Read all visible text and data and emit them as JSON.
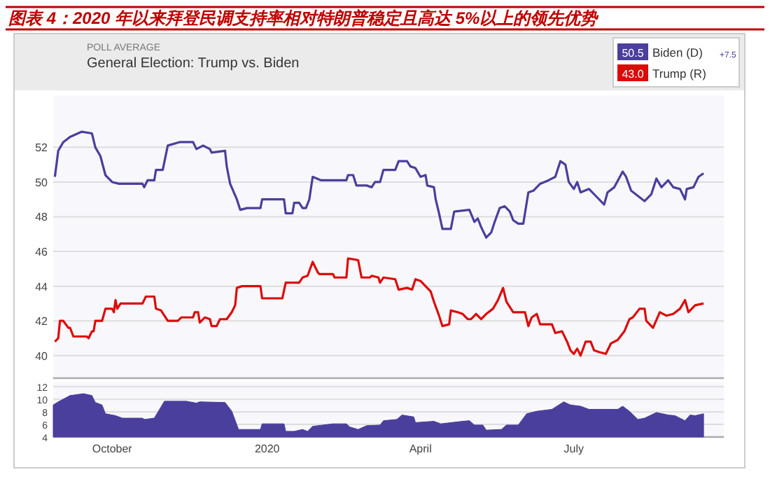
{
  "chart_data": [
    {
      "type": "line",
      "title": "图表 4：2020 年以来拜登民调支持率相对特朗普稳定且高达 5%以上的领先优势",
      "subtitle": "General Election: Trump vs. Biden",
      "annotations": [
        "POLL AVERAGE",
        "50.5",
        "43.0",
        "+7.5"
      ],
      "xlim": [
        "2019-08-27",
        "2020-09-28"
      ],
      "ylim": [
        38.7,
        55
      ],
      "yticks": [
        40,
        42,
        44,
        46,
        48,
        50,
        52
      ],
      "grid": "y",
      "legend": "top right",
      "tick_labels": "y",
      "line_style": "solid",
      "series": [
        {
          "name": "Biden (D)",
          "color": "#4a3f9d",
          "x": [
            "2019-08-28",
            "2019-08-30",
            "2019-09-02",
            "2019-09-06",
            "2019-09-13",
            "2019-09-19",
            "2019-09-21",
            "2019-09-24",
            "2019-09-27",
            "2019-10-01",
            "2019-10-05",
            "2019-10-19",
            "2019-10-20",
            "2019-10-22",
            "2019-10-26",
            "2019-10-27",
            "2019-10-31",
            "2019-11-03",
            "2019-11-10",
            "2019-11-18",
            "2019-11-20",
            "2019-11-24",
            "2019-11-28",
            "2019-11-29",
            "2019-12-07",
            "2019-12-08",
            "2019-12-10",
            "2019-12-14",
            "2019-12-16",
            "2019-12-20",
            "2019-12-28",
            "2019-12-29",
            "2020-01-11",
            "2020-01-12",
            "2020-01-16",
            "2020-01-17",
            "2020-01-20",
            "2020-01-22",
            "2020-01-24",
            "2020-01-26",
            "2020-01-28",
            "2020-02-02",
            "2020-02-17",
            "2020-02-18",
            "2020-02-21",
            "2020-02-23",
            "2020-02-29",
            "2020-03-03",
            "2020-03-05",
            "2020-03-08",
            "2020-03-10",
            "2020-03-17",
            "2020-03-19",
            "2020-03-24",
            "2020-03-26",
            "2020-03-29",
            "2020-04-01",
            "2020-04-04",
            "2020-04-05",
            "2020-04-09",
            "2020-04-10",
            "2020-04-12",
            "2020-04-14",
            "2020-04-19",
            "2020-04-21",
            "2020-04-30",
            "2020-05-03",
            "2020-05-05",
            "2020-05-07",
            "2020-05-10",
            "2020-05-13",
            "2020-05-15",
            "2020-05-18",
            "2020-05-21",
            "2020-05-24",
            "2020-05-26",
            "2020-05-29",
            "2020-06-01",
            "2020-06-04",
            "2020-06-07",
            "2020-06-11",
            "2020-06-16",
            "2020-06-20",
            "2020-06-23",
            "2020-06-26",
            "2020-06-28",
            "2020-07-01",
            "2020-07-03",
            "2020-07-05",
            "2020-07-10",
            "2020-07-14",
            "2020-07-19",
            "2020-07-21",
            "2020-07-25",
            "2020-07-30",
            "2020-08-01",
            "2020-08-04",
            "2020-08-08",
            "2020-08-12",
            "2020-08-16",
            "2020-08-19",
            "2020-08-22",
            "2020-08-26",
            "2020-08-29",
            "2020-09-02",
            "2020-09-05",
            "2020-09-06",
            "2020-09-10",
            "2020-09-13",
            "2020-09-16"
          ],
          "values": [
            50.3,
            51.8,
            52.3,
            52.6,
            52.9,
            52.8,
            52.0,
            51.5,
            50.4,
            50.0,
            49.9,
            49.9,
            49.7,
            50.1,
            50.1,
            50.7,
            50.7,
            52.1,
            52.3,
            52.3,
            51.9,
            52.1,
            51.9,
            51.7,
            51.8,
            50.9,
            49.9,
            49.0,
            48.4,
            48.5,
            48.5,
            49.0,
            49.0,
            48.2,
            48.2,
            48.8,
            48.8,
            48.5,
            48.5,
            49.0,
            50.3,
            50.1,
            50.1,
            50.4,
            50.4,
            49.8,
            49.8,
            49.7,
            50.0,
            50.0,
            50.7,
            50.7,
            51.2,
            51.2,
            50.9,
            50.8,
            50.3,
            50.4,
            49.8,
            49.7,
            49.0,
            48.2,
            47.3,
            47.3,
            48.3,
            48.4,
            47.7,
            47.9,
            47.4,
            46.8,
            47.1,
            47.7,
            48.5,
            48.6,
            48.3,
            47.8,
            47.6,
            47.6,
            49.4,
            49.5,
            49.9,
            50.1,
            50.3,
            51.2,
            51.0,
            50.0,
            49.6,
            50.0,
            49.4,
            49.6,
            49.2,
            48.7,
            49.4,
            49.7,
            50.6,
            50.3,
            49.5,
            49.2,
            48.9,
            49.3,
            50.2,
            49.7,
            50.1,
            49.7,
            49.6,
            49.0,
            49.6,
            49.7,
            50.3,
            50.5
          ]
        },
        {
          "name": "Trump (R)",
          "color": "#dd0a0a",
          "x": [
            "2019-08-28",
            "2019-08-30",
            "2019-08-31",
            "2019-09-02",
            "2019-09-05",
            "2019-09-06",
            "2019-09-08",
            "2019-09-16",
            "2019-09-17",
            "2019-09-19",
            "2019-09-20",
            "2019-09-21",
            "2019-09-25",
            "2019-09-27",
            "2019-10-01",
            "2019-10-02",
            "2019-10-03",
            "2019-10-04",
            "2019-10-06",
            "2019-10-19",
            "2019-10-21",
            "2019-10-26",
            "2019-10-27",
            "2019-10-30",
            "2019-11-03",
            "2019-11-09",
            "2019-11-11",
            "2019-11-18",
            "2019-11-19",
            "2019-11-21",
            "2019-11-22",
            "2019-11-25",
            "2019-11-28",
            "2019-11-29",
            "2019-12-02",
            "2019-12-04",
            "2019-12-08",
            "2019-12-11",
            "2019-12-13",
            "2019-12-14",
            "2019-12-17",
            "2019-12-28",
            "2019-12-29",
            "2020-01-10",
            "2020-01-12",
            "2020-01-20",
            "2020-01-22",
            "2020-01-25",
            "2020-01-28",
            "2020-01-31",
            "2020-02-01",
            "2020-02-09",
            "2020-02-10",
            "2020-02-17",
            "2020-02-18",
            "2020-02-24",
            "2020-02-26",
            "2020-03-02",
            "2020-03-03",
            "2020-03-07",
            "2020-03-08",
            "2020-03-10",
            "2020-03-17",
            "2020-03-19",
            "2020-03-24",
            "2020-03-27",
            "2020-03-29",
            "2020-04-01",
            "2020-04-04",
            "2020-04-07",
            "2020-04-09",
            "2020-04-12",
            "2020-04-14",
            "2020-04-18",
            "2020-04-19",
            "2020-04-23",
            "2020-04-26",
            "2020-04-29",
            "2020-05-01",
            "2020-05-04",
            "2020-05-07",
            "2020-05-10",
            "2020-05-14",
            "2020-05-17",
            "2020-05-20",
            "2020-05-22",
            "2020-05-26",
            "2020-06-02",
            "2020-06-04",
            "2020-06-06",
            "2020-06-09",
            "2020-06-11",
            "2020-06-18",
            "2020-06-20",
            "2020-06-24",
            "2020-06-27",
            "2020-06-29",
            "2020-07-01",
            "2020-07-03",
            "2020-07-05",
            "2020-07-08",
            "2020-07-11",
            "2020-07-13",
            "2020-07-16",
            "2020-07-20",
            "2020-07-23",
            "2020-07-27",
            "2020-07-31",
            "2020-08-03",
            "2020-08-05",
            "2020-08-09",
            "2020-08-12",
            "2020-08-13",
            "2020-08-17",
            "2020-08-21",
            "2020-08-25",
            "2020-08-29",
            "2020-09-02",
            "2020-09-05",
            "2020-09-07",
            "2020-09-11",
            "2020-09-16"
          ],
          "values": [
            40.8,
            41.0,
            42.0,
            42.0,
            41.6,
            41.6,
            41.1,
            41.1,
            41.0,
            41.4,
            41.4,
            42.0,
            42.0,
            42.7,
            42.7,
            42.5,
            43.2,
            42.7,
            43.0,
            43.0,
            43.4,
            43.4,
            42.7,
            42.6,
            42.0,
            42.0,
            42.2,
            42.2,
            42.5,
            42.5,
            41.9,
            42.2,
            42.1,
            41.7,
            41.7,
            42.1,
            42.1,
            42.5,
            42.9,
            43.9,
            44.0,
            44.0,
            43.3,
            43.3,
            44.2,
            44.2,
            44.5,
            44.6,
            45.4,
            44.8,
            44.7,
            44.7,
            44.5,
            44.5,
            45.6,
            45.5,
            44.5,
            44.5,
            44.6,
            44.5,
            44.2,
            44.5,
            44.4,
            43.8,
            43.9,
            43.8,
            44.4,
            44.3,
            44.0,
            43.7,
            43.1,
            42.3,
            41.7,
            41.8,
            42.6,
            42.5,
            42.4,
            42.1,
            42.1,
            42.4,
            42.1,
            42.4,
            42.7,
            43.2,
            43.9,
            43.1,
            42.5,
            42.5,
            41.7,
            42.2,
            42.4,
            41.8,
            41.8,
            41.3,
            41.4,
            40.8,
            40.3,
            40.1,
            40.4,
            40.0,
            40.8,
            40.8,
            40.3,
            40.2,
            40.1,
            40.7,
            40.9,
            41.4,
            42.1,
            42.2,
            42.7,
            42.7,
            42.0,
            41.6,
            42.5,
            42.3,
            42.4,
            42.7,
            43.2,
            42.5,
            42.9,
            43.0
          ]
        }
      ]
    },
    {
      "type": "area",
      "xlim": [
        "2019-08-27",
        "2020-09-28"
      ],
      "xticks": [
        {
          "value": "2019-10-01",
          "label": "October"
        },
        {
          "value": "2020-01-01",
          "label": "2020"
        },
        {
          "value": "2020-04-01",
          "label": "April"
        },
        {
          "value": "2020-07-01",
          "label": "July"
        }
      ],
      "ylim": [
        4,
        12.7
      ],
      "yticks": [
        4,
        6,
        8,
        10,
        12
      ],
      "grid": "y",
      "color": "#4a3f9d",
      "x": [
        "2019-08-27",
        "2019-08-30",
        "2019-09-06",
        "2019-09-14",
        "2019-09-19",
        "2019-09-21",
        "2019-09-25",
        "2019-09-27",
        "2019-10-03",
        "2019-10-07",
        "2019-10-19",
        "2019-10-20",
        "2019-10-26",
        "2019-10-30",
        "2019-11-01",
        "2019-11-14",
        "2019-11-20",
        "2019-11-22",
        "2019-12-07",
        "2019-12-11",
        "2019-12-15",
        "2019-12-28",
        "2019-12-29",
        "2020-01-11",
        "2020-01-12",
        "2020-01-17",
        "2020-01-22",
        "2020-01-25",
        "2020-01-28",
        "2020-02-09",
        "2020-02-17",
        "2020-02-19",
        "2020-02-24",
        "2020-02-29",
        "2020-03-08",
        "2020-03-10",
        "2020-03-18",
        "2020-03-21",
        "2020-03-28",
        "2020-03-29",
        "2020-04-09",
        "2020-04-13",
        "2020-04-26",
        "2020-04-30",
        "2020-05-03",
        "2020-05-08",
        "2020-05-10",
        "2020-05-19",
        "2020-05-22",
        "2020-05-29",
        "2020-06-03",
        "2020-06-09",
        "2020-06-18",
        "2020-06-25",
        "2020-06-29",
        "2020-07-05",
        "2020-07-10",
        "2020-07-27",
        "2020-07-30",
        "2020-08-03",
        "2020-08-08",
        "2020-08-12",
        "2020-08-19",
        "2020-08-26",
        "2020-08-30",
        "2020-09-05",
        "2020-09-08",
        "2020-09-11",
        "2020-09-16"
      ],
      "values": [
        9.1,
        9.6,
        10.6,
        10.9,
        10.6,
        9.5,
        9.1,
        7.7,
        7.4,
        7.0,
        7.0,
        6.8,
        7.0,
        8.8,
        9.7,
        9.7,
        9.4,
        9.6,
        9.5,
        8.1,
        5.2,
        5.2,
        6.1,
        6.1,
        4.9,
        4.9,
        5.2,
        4.9,
        5.7,
        6.1,
        6.1,
        5.6,
        5.2,
        5.8,
        5.9,
        6.6,
        6.8,
        7.5,
        7.2,
        6.3,
        6.5,
        6.1,
        6.5,
        6.6,
        5.9,
        5.9,
        5.1,
        5.2,
        5.9,
        5.9,
        7.7,
        8.1,
        8.4,
        9.6,
        9.1,
        8.9,
        8.4,
        8.4,
        8.9,
        8.1,
        6.8,
        7.0,
        7.9,
        7.5,
        7.4,
        6.6,
        7.5,
        7.4,
        7.7
      ]
    }
  ]
}
